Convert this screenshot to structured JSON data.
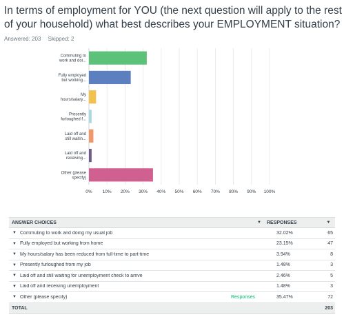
{
  "question": {
    "title": "In terms of employment for YOU (the next question will apply to the rest of your household) what best describes your EMPLOYMENT situation?",
    "answered": "Answered: 203",
    "skipped": "Skipped: 2"
  },
  "chart_data": {
    "type": "bar",
    "orientation": "horizontal",
    "categories": [
      [
        "Commuting to",
        "work and doi..."
      ],
      [
        "Fully employed",
        "but working..."
      ],
      [
        "My",
        "hours/salary..."
      ],
      [
        "Presently",
        "furloughed f..."
      ],
      [
        "Laid off and",
        "still waitin..."
      ],
      [
        "Laid off and",
        "receiving..."
      ],
      [
        "Other (please",
        "specify)"
      ]
    ],
    "values": [
      32.02,
      23.15,
      3.94,
      1.48,
      2.46,
      1.48,
      35.47
    ],
    "colors": [
      "#5cc27a",
      "#5b7fbf",
      "#f2c14e",
      "#a8d8e0",
      "#f0986a",
      "#6e5b8a",
      "#d0608f"
    ],
    "xlim": [
      0,
      100
    ],
    "ticks": [
      "0%",
      "10%",
      "20%",
      "30%",
      "40%",
      "50%",
      "60%",
      "70%",
      "80%",
      "90%",
      "100%"
    ],
    "grid": true
  },
  "table": {
    "headers": {
      "choices": "ANSWER CHOICES",
      "responses": "RESPONSES",
      "sort_icon": "▼"
    },
    "row_icon": "▼",
    "rows": [
      {
        "label": "Commuting to work and doing my usual job",
        "link": "",
        "pct": "32.02%",
        "count": "65"
      },
      {
        "label": "Fully employed but working from home",
        "link": "",
        "pct": "23.15%",
        "count": "47"
      },
      {
        "label": "My hours/salary has been reduced from full-time to part-time",
        "link": "",
        "pct": "3.94%",
        "count": "8"
      },
      {
        "label": "Presently furloughed from my job",
        "link": "",
        "pct": "1.48%",
        "count": "3"
      },
      {
        "label": "Laid off and still waiting for unemployment check to arrive",
        "link": "",
        "pct": "2.46%",
        "count": "5"
      },
      {
        "label": "Laid off and receiving unemployment",
        "link": "",
        "pct": "1.48%",
        "count": "3"
      },
      {
        "label": "Other (please specify)",
        "link": "Responses",
        "pct": "35.47%",
        "count": "72"
      }
    ],
    "total_label": "TOTAL",
    "total_count": "203"
  }
}
